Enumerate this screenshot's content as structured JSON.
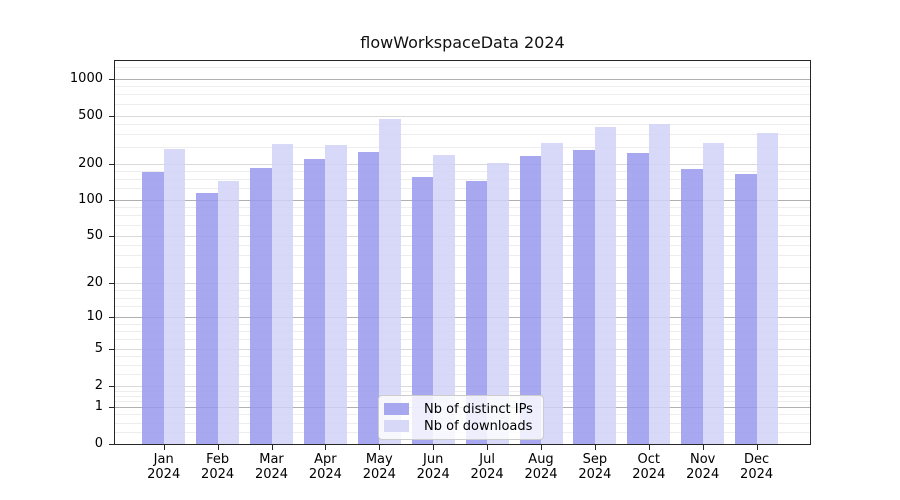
{
  "title": "flowWorkspaceData 2024",
  "chart_data": {
    "type": "bar",
    "title": "flowWorkspaceData 2024",
    "categories": [
      "Jan 2024",
      "Feb 2024",
      "Mar 2024",
      "Apr 2024",
      "May 2024",
      "Jun 2024",
      "Jul 2024",
      "Aug 2024",
      "Sep 2024",
      "Oct 2024",
      "Nov 2024",
      "Dec 2024"
    ],
    "months": [
      "Jan",
      "Feb",
      "Mar",
      "Apr",
      "May",
      "Jun",
      "Jul",
      "Aug",
      "Sep",
      "Oct",
      "Nov",
      "Dec"
    ],
    "year_label": "2024",
    "series": [
      {
        "name": "Nb of distinct IPs",
        "color": "#9999ed",
        "values": [
          170,
          115,
          185,
          220,
          250,
          155,
          145,
          230,
          260,
          245,
          180,
          165
        ]
      },
      {
        "name": "Nb of downloads",
        "color": "#d1d1f7",
        "values": [
          265,
          145,
          290,
          285,
          465,
          235,
          205,
          295,
          405,
          425,
          295,
          360
        ]
      }
    ],
    "bar_opacity": 0.85,
    "y_scale": "log1p",
    "y_ticks": [
      0,
      1,
      2,
      5,
      10,
      20,
      50,
      100,
      200,
      500,
      1000
    ],
    "ylim": [
      0,
      1500
    ],
    "grid": true,
    "legend_position": "lower center",
    "background": "#ffffff",
    "grid_major_color": "#b0b0b0",
    "grid_mid_color": "#d9d9d9",
    "grid_minor_color": "#ededed"
  }
}
